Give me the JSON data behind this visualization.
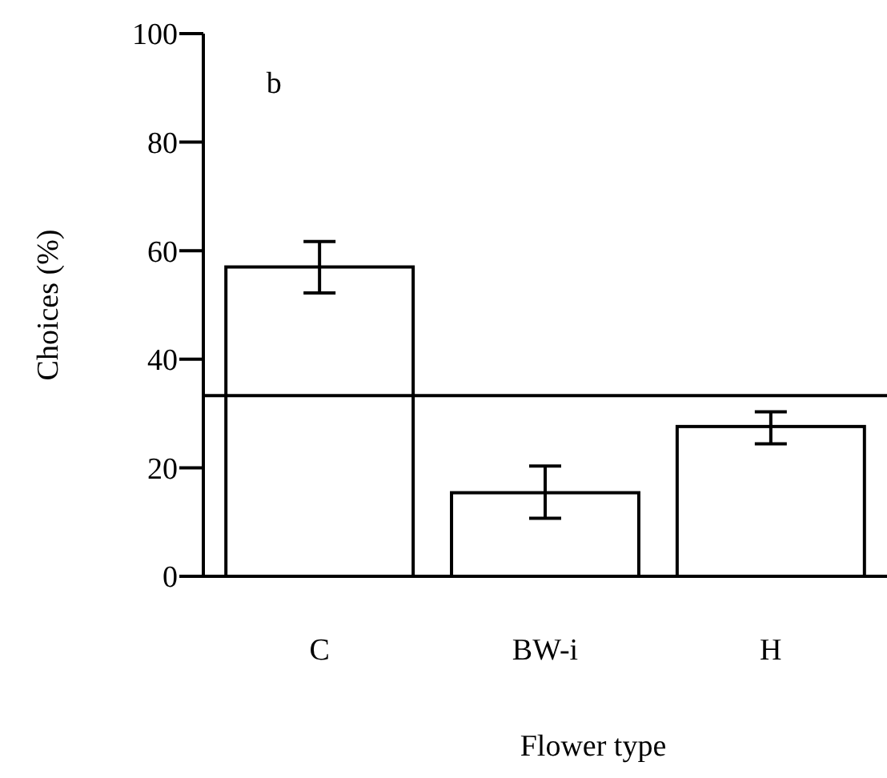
{
  "chart_data": {
    "type": "bar",
    "xlabel": "Flower type",
    "ylabel": "Choices (%)",
    "categories": [
      "C",
      "BW-i",
      "H"
    ],
    "values": [
      57,
      15.4,
      27.6
    ],
    "errors": [
      [
        52.2,
        61.7
      ],
      [
        10.7,
        20.3
      ],
      [
        24.4,
        30.3
      ]
    ],
    "color": "#ffffff",
    "ylim": [
      0,
      100
    ],
    "yticks": [
      0,
      20,
      40,
      60,
      80,
      100
    ],
    "grid": false,
    "ref_lines": [
      {
        "axis": "y",
        "value": 33.3,
        "color": "#000000"
      }
    ],
    "annotations": [
      "b"
    ]
  }
}
